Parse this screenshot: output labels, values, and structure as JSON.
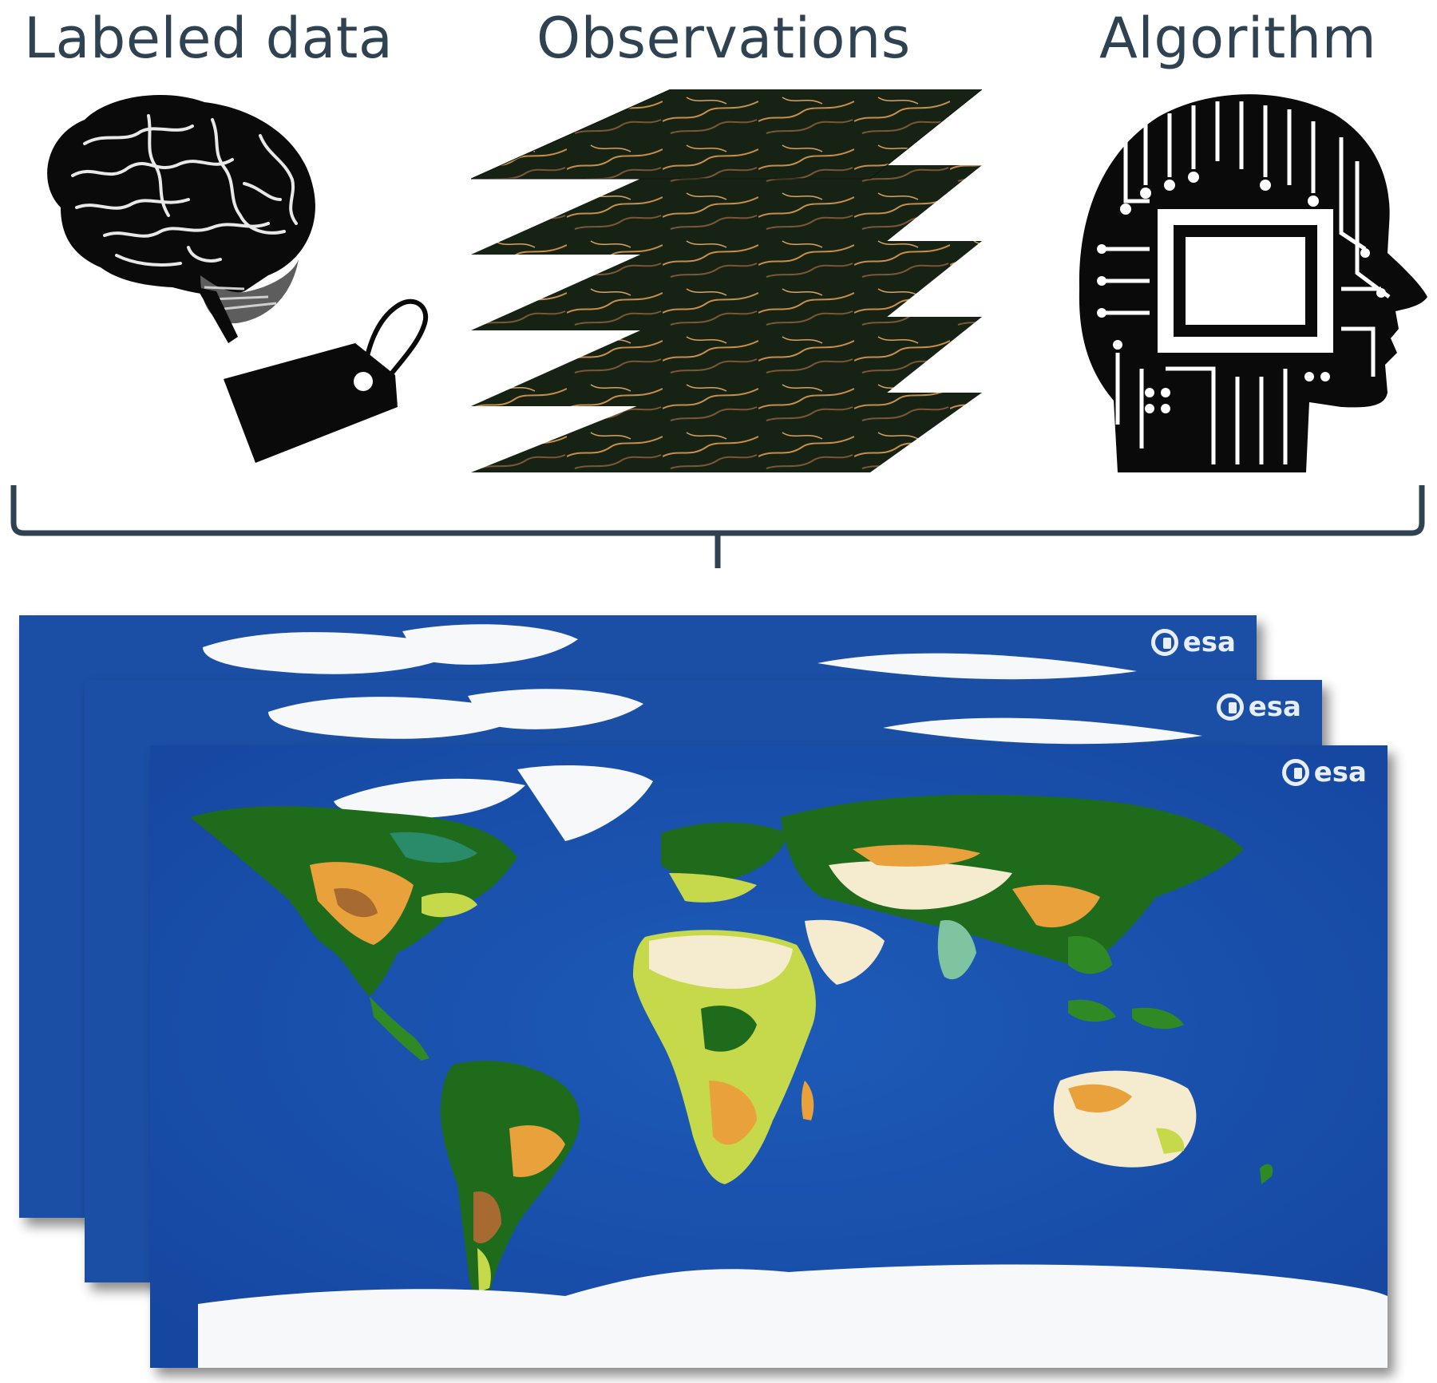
{
  "headings": {
    "labeled_data": "Labeled data",
    "observations": "Observations",
    "algorithm": "Algorithm"
  },
  "icons": {
    "labeled_data": [
      "brain-icon",
      "price-tag-icon"
    ],
    "observations": "satellite-image-stack-icon",
    "algorithm": "circuit-head-icon",
    "connector": "bracket-connector",
    "output": "world-land-cover-map-stack"
  },
  "map_logo": "esa",
  "colors": {
    "heading": "#2f4252",
    "bracket": "#2f4252",
    "ocean": "#1a4fa5",
    "ice": "#f6f8fa",
    "forest": "#1f6b1c",
    "grassland": "#e9a23b",
    "desert": "#f5ecd0",
    "cropland": "#c6d94a"
  }
}
